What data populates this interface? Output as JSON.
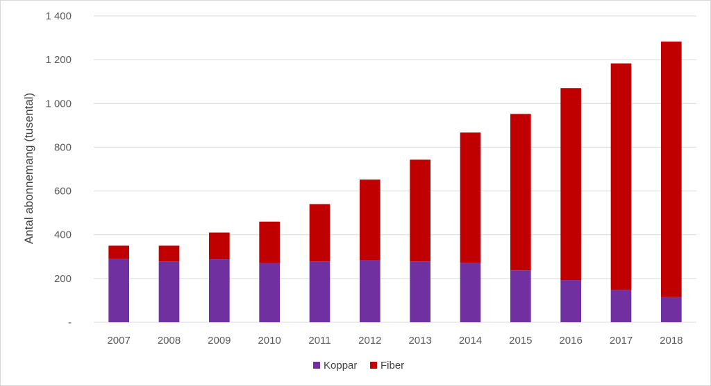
{
  "chart_data": {
    "type": "bar",
    "stacked": true,
    "title": "",
    "xlabel": "",
    "ylabel": "Antal abonnemang (tusental)",
    "ylim": [
      0,
      1400
    ],
    "y_ticks": [
      0,
      200,
      400,
      600,
      800,
      1000,
      1200,
      1400
    ],
    "y_tick_labels": [
      "-",
      "200",
      "400",
      "600",
      "800",
      "1 000",
      "1 200",
      "1 400"
    ],
    "grid": true,
    "legend_position": "bottom",
    "categories": [
      "2007",
      "2008",
      "2009",
      "2010",
      "2011",
      "2012",
      "2013",
      "2014",
      "2015",
      "2016",
      "2017",
      "2018"
    ],
    "series": [
      {
        "name": "Koppar",
        "color": "#7030a0",
        "values": [
          290,
          278,
          288,
          270,
          278,
          285,
          278,
          272,
          237,
          193,
          148,
          115
        ]
      },
      {
        "name": "Fiber",
        "color": "#c00000",
        "values": [
          60,
          72,
          122,
          190,
          262,
          367,
          465,
          595,
          715,
          877,
          1035,
          1168
        ]
      }
    ]
  }
}
